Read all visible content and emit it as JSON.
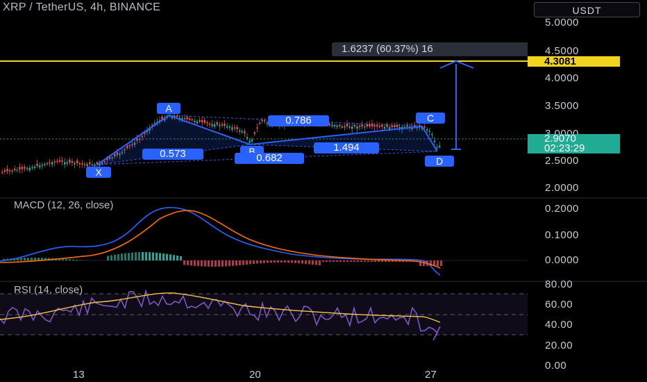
{
  "header": {
    "title": "XRP / TetherUS, 4h, BINANCE",
    "currency_button": "USDT"
  },
  "price_axis": {
    "ticks": [
      "5.0000",
      "4.5000",
      "4.0000",
      "3.5000",
      "3.0000",
      "2.5000",
      "2.0000"
    ],
    "horizontal_line_label": "4.3081",
    "last_price": "2.9070",
    "countdown": "02:23:29"
  },
  "macd_pane": {
    "label": "MACD (12, 26, close)",
    "ticks": [
      "0.2000",
      "0.1000",
      "0.0000"
    ]
  },
  "rsi_pane": {
    "label": "RSI (14, close)",
    "ticks": [
      "80.00",
      "60.00",
      "40.00",
      "20.00",
      "0.00"
    ]
  },
  "time_axis": {
    "labels": [
      "13",
      "20",
      "27"
    ]
  },
  "measure_tool": {
    "text": "1.6237 (60.37%) 16"
  },
  "harmonic_pattern": {
    "points": [
      "X",
      "A",
      "B",
      "C",
      "D"
    ],
    "ratios": [
      "0.573",
      "0.786",
      "1.494",
      "0.682"
    ]
  },
  "colors": {
    "background": "#000000",
    "pattern_blue": "#2962ff",
    "horizontal_line": "#f2d31f",
    "up_candle": "#26a69a",
    "down_candle": "#ef5350",
    "macd_line": "#2962ff",
    "signal_line": "#ff6d00",
    "rsi_line": "#7e57c2",
    "rsi_ma": "#f7c548"
  }
}
